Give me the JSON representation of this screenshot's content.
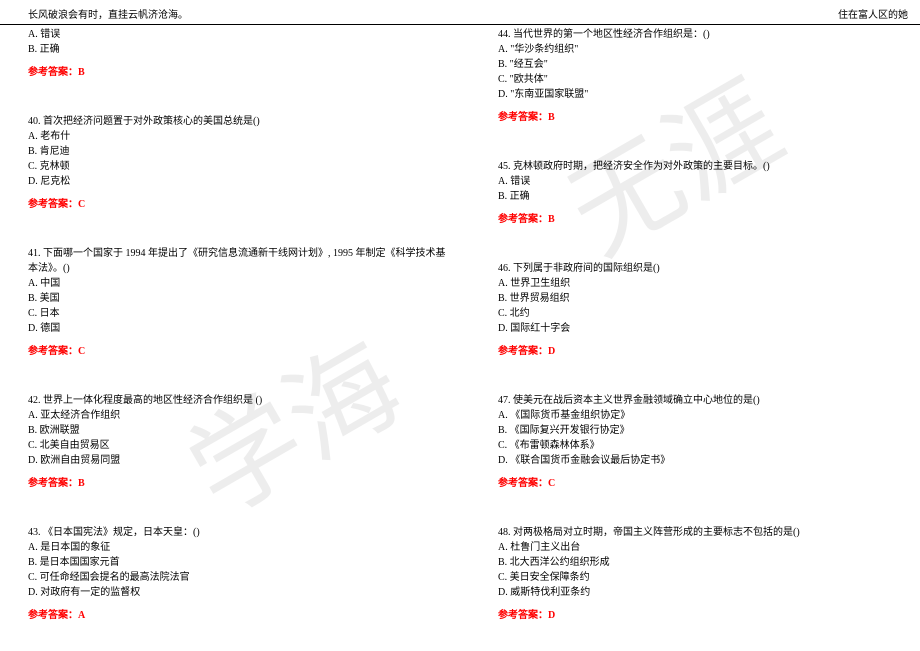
{
  "header": {
    "left": "长风破浪会有时，直挂云帆济沧海。",
    "right": "住在富人区的她"
  },
  "watermark": {
    "text1": "无涯",
    "text2": "学海"
  },
  "colors": {
    "answer": "#ff0000",
    "text": "#000000",
    "border": "#000000",
    "background": "#ffffff",
    "watermark": "rgba(0,0,0,0.07)"
  },
  "left_col": [
    {
      "num": "",
      "stem": "",
      "opts": [
        "A. 错误",
        "B. 正确"
      ],
      "ans": "参考答案：B"
    },
    {
      "num": "40.",
      "stem": "首次把经济问题置于对外政策核心的美国总统是()",
      "opts": [
        "A. 老布什",
        "B. 肯尼迪",
        "C. 克林顿",
        "D. 尼克松"
      ],
      "ans": "参考答案：C"
    },
    {
      "num": "41.",
      "stem": "下面哪一个国家于 1994 年提出了《研究信息流通新干线网计划》, 1995 年制定《科学技术基本法》。()",
      "opts": [
        "A. 中国",
        "B. 美国",
        "C. 日本",
        "D. 德国"
      ],
      "ans": "参考答案：C"
    },
    {
      "num": "42.",
      "stem": "世界上一体化程度最高的地区性经济合作组织是 ()",
      "opts": [
        "A. 亚太经济合作组织",
        "B. 欧洲联盟",
        "C. 北美自由贸易区",
        "D. 欧洲自由贸易同盟"
      ],
      "ans": "参考答案：B"
    },
    {
      "num": "43.",
      "stem": "《日本国宪法》规定，日本天皇：()",
      "opts": [
        "A. 是日本国的象征",
        "B. 是日本国国家元首",
        "C. 可任命经国会提名的最高法院法官",
        "D. 对政府有一定的监督权"
      ],
      "ans": "参考答案：A"
    }
  ],
  "right_col": [
    {
      "num": "44.",
      "stem": "当代世界的第一个地区性经济合作组织是：()",
      "opts": [
        "A. \"华沙条约组织\"",
        "B. \"经互会\"",
        "C. \"欧共体\"",
        "D. \"东南亚国家联盟\""
      ],
      "ans": "参考答案：B"
    },
    {
      "num": "45.",
      "stem": "克林顿政府时期，把经济安全作为对外政策的主要目标。()",
      "opts": [
        "A. 错误",
        "B. 正确"
      ],
      "ans": "参考答案：B"
    },
    {
      "num": "46.",
      "stem": "下列属于非政府间的国际组织是()",
      "opts": [
        "A. 世界卫生组织",
        "B. 世界贸易组织",
        "C. 北约",
        "D. 国际红十字会"
      ],
      "ans": "参考答案：D"
    },
    {
      "num": "47.",
      "stem": "使美元在战后资本主义世界金融领域确立中心地位的是()",
      "opts": [
        "A. 《国际货币基金组织协定》",
        "B. 《国际复兴开发银行协定》",
        "C. 《布雷顿森林体系》",
        "D. 《联合国货币金融会议最后协定书》"
      ],
      "ans": "参考答案：C"
    },
    {
      "num": "48.",
      "stem": "对两极格局对立时期，帝国主义阵营形成的主要标志不包括的是()",
      "opts": [
        "A. 杜鲁门主义出台",
        "B. 北大西洋公约组织形成",
        "C. 美日安全保障条约",
        "D. 威斯特伐利亚条约"
      ],
      "ans": "参考答案：D"
    }
  ]
}
